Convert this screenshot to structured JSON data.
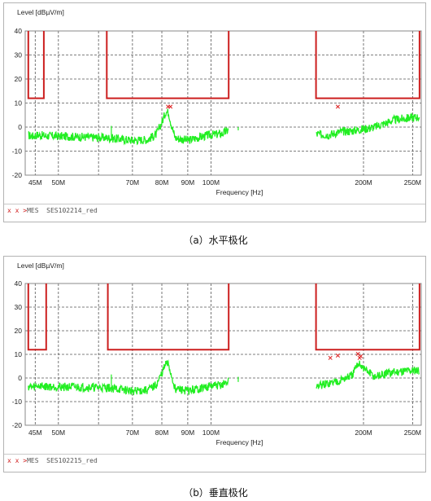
{
  "figures": [
    {
      "caption": "（a）水平极化",
      "legend": {
        "markers": "x x >",
        "text": "MES  SES102214_red"
      }
    },
    {
      "caption": "（b）垂直极化",
      "legend": {
        "markers": "x x >",
        "text": "MES  SES102215_red"
      }
    }
  ],
  "colors": {
    "limit": "#cc1f1f",
    "trace": "#22ee22",
    "marker": "#dd2222",
    "grid": "#555555",
    "frame": "#888888"
  },
  "chart_data": [
    {
      "type": "line",
      "title": "",
      "ylabel": "Level [dBµV/m]",
      "xlabel": "Frequency [Hz]",
      "x_scale": "log",
      "xlim": [
        43,
        260
      ],
      "ylim": [
        -20,
        40
      ],
      "grid": true,
      "y_ticks": [
        40,
        30,
        20,
        10,
        0,
        -10,
        -20
      ],
      "x_ticks": [
        {
          "value": 45,
          "label": "45M"
        },
        {
          "value": 50,
          "label": "50M"
        },
        {
          "value": 70,
          "label": "70M"
        },
        {
          "value": 80,
          "label": "80M"
        },
        {
          "value": 90,
          "label": "90M"
        },
        {
          "value": 100,
          "label": "100M"
        },
        {
          "value": 200,
          "label": "200M"
        },
        {
          "value": 250,
          "label": "250M"
        }
      ],
      "x_gridlines": [
        45,
        50,
        60,
        70,
        80,
        90,
        100,
        200,
        250
      ],
      "limit_line": {
        "name": "",
        "segments": [
          [
            [
              43.6,
              40
            ],
            [
              43.6,
              12
            ],
            [
              46.8,
              12
            ],
            [
              46.8,
              40
            ]
          ],
          [
            [
              62.3,
              40
            ],
            [
              62.3,
              12
            ],
            [
              108.4,
              12
            ],
            [
              108.4,
              40
            ]
          ],
          [
            [
              161.2,
              40
            ],
            [
              161.2,
              12
            ],
            [
              258,
              12
            ],
            [
              258,
              40
            ]
          ]
        ]
      },
      "trace": {
        "name": "",
        "points": [
          [
            43.6,
            -3.5
          ],
          [
            44.5,
            -3.8
          ],
          [
            45.5,
            -3.2
          ],
          [
            46.8,
            -3.6
          ],
          [
            62.5,
            -4.5
          ],
          [
            65,
            -4.8
          ],
          [
            70,
            -5.5
          ],
          [
            75,
            -5.2
          ],
          [
            78,
            -3
          ],
          [
            80,
            2
          ],
          [
            81.5,
            6.5
          ],
          [
            82.5,
            6
          ],
          [
            83.5,
            1
          ],
          [
            85,
            -4.5
          ],
          [
            90,
            -5.5
          ],
          [
            95,
            -4.2
          ],
          [
            100,
            -3.2
          ],
          [
            105,
            -2.8
          ],
          [
            108.4,
            -1.2
          ],
          [
            161.2,
            -3
          ],
          [
            170,
            -3.2
          ],
          [
            180,
            -2
          ],
          [
            190,
            -1.5
          ],
          [
            200,
            -0.8
          ],
          [
            210,
            0
          ],
          [
            220,
            1.5
          ],
          [
            230,
            3
          ],
          [
            240,
            3.5
          ],
          [
            250,
            4
          ],
          [
            258,
            4.2
          ]
        ],
        "spikes": [
          [
            63.6,
            0.5
          ],
          [
            113.2,
            0
          ]
        ]
      },
      "markers": [
        [
          82.3,
          8.5
        ],
        [
          83.2,
          8.5
        ],
        [
          178,
          8.5
        ]
      ]
    },
    {
      "type": "line",
      "title": "",
      "ylabel": "Level [dBµV/m]",
      "xlabel": "Frequency [Hz]",
      "x_scale": "log",
      "xlim": [
        43,
        260
      ],
      "ylim": [
        -20,
        40
      ],
      "grid": true,
      "y_ticks": [
        40,
        30,
        20,
        10,
        0,
        -10,
        -20
      ],
      "x_ticks": [
        {
          "value": 45,
          "label": "45M"
        },
        {
          "value": 50,
          "label": "50M"
        },
        {
          "value": 70,
          "label": "70M"
        },
        {
          "value": 80,
          "label": "80M"
        },
        {
          "value": 90,
          "label": "90M"
        },
        {
          "value": 100,
          "label": "100M"
        },
        {
          "value": 200,
          "label": "200M"
        },
        {
          "value": 250,
          "label": "250M"
        }
      ],
      "x_gridlines": [
        45,
        50,
        60,
        70,
        80,
        90,
        100,
        200,
        250
      ],
      "limit_line": {
        "name": "",
        "segments": [
          [
            [
              43.6,
              40
            ],
            [
              43.6,
              12
            ],
            [
              47.3,
              12
            ],
            [
              47.3,
              40
            ]
          ],
          [
            [
              62.6,
              40
            ],
            [
              62.6,
              12
            ],
            [
              108.4,
              12
            ],
            [
              108.4,
              40
            ]
          ],
          [
            [
              161.2,
              40
            ],
            [
              161.2,
              12
            ],
            [
              258,
              12
            ],
            [
              258,
              40
            ]
          ]
        ]
      },
      "trace": {
        "name": "",
        "points": [
          [
            43.6,
            -3.5
          ],
          [
            44.5,
            -4
          ],
          [
            45.5,
            -3.2
          ],
          [
            47.3,
            -3.6
          ],
          [
            62.8,
            -4.2
          ],
          [
            65,
            -4.6
          ],
          [
            70,
            -5.5
          ],
          [
            75,
            -5.2
          ],
          [
            78,
            -3
          ],
          [
            80,
            2
          ],
          [
            81.5,
            6
          ],
          [
            82.5,
            5.5
          ],
          [
            83.5,
            1
          ],
          [
            85,
            -4.5
          ],
          [
            90,
            -5.5
          ],
          [
            95,
            -4.5
          ],
          [
            100,
            -3.5
          ],
          [
            105,
            -3
          ],
          [
            108.4,
            -1.5
          ],
          [
            161.2,
            -3.5
          ],
          [
            170,
            -2.5
          ],
          [
            180,
            -1
          ],
          [
            190,
            1
          ],
          [
            196,
            6.5
          ],
          [
            200,
            4
          ],
          [
            210,
            0.5
          ],
          [
            220,
            1.5
          ],
          [
            230,
            2.5
          ],
          [
            240,
            3
          ],
          [
            250,
            3.2
          ],
          [
            258,
            3.5
          ]
        ],
        "spikes": [
          [
            63.6,
            1.5
          ],
          [
            113.2,
            0.5
          ]
        ]
      },
      "markers": [
        [
          172,
          8.5
        ],
        [
          178,
          9.5
        ],
        [
          195,
          10.2
        ],
        [
          196.5,
          8.5
        ],
        [
          197.5,
          9.2
        ]
      ]
    }
  ]
}
